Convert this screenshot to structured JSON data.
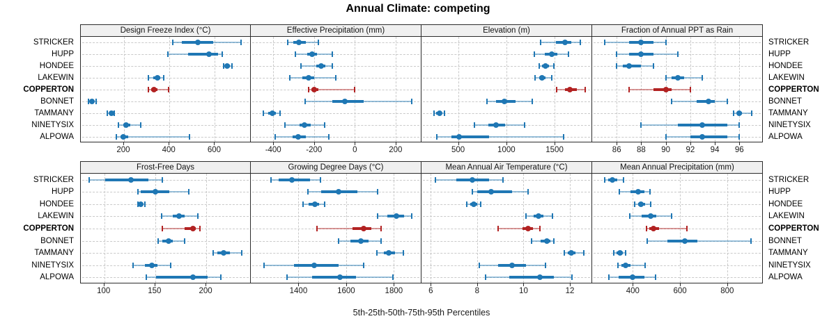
{
  "chart_data": {
    "type": "dotplot-percentiles",
    "title": "Annual Climate: competing",
    "xlabel": "5th-25th-50th-75th-95th Percentiles",
    "legend": "none",
    "grid": "dashed",
    "sites": [
      "STRICKER",
      "HUPP",
      "HONDEE",
      "LAKEWIN",
      "COPPERTON",
      "BONNET",
      "TAMMANY",
      "NINETYSIX",
      "ALPOWA"
    ],
    "highlight_site": "COPPERTON",
    "colors": {
      "normal": "#1F77B4",
      "highlight": "#B22222",
      "panel_header_bg": "#F0F0F0",
      "border": "#2B2B2B",
      "grid": "#C9C9C9"
    },
    "percentile_order": [
      "p5",
      "p25",
      "p50",
      "p75",
      "p95"
    ],
    "panels": [
      {
        "label": "Design Freeze Index (°C)",
        "row": "top",
        "xlim": [
          10,
          755
        ],
        "ticks": [
          200,
          400,
          600
        ],
        "values": {
          "STRICKER": [
            415,
            455,
            526,
            594,
            716
          ],
          "HUPP": [
            393,
            483,
            574,
            615,
            633
          ],
          "HONDEE": [
            640,
            645,
            654,
            666,
            675
          ],
          "LAKEWIN": [
            308,
            330,
            347,
            361,
            374
          ],
          "COPPERTON": [
            308,
            321,
            333,
            347,
            396
          ],
          "BONNET": [
            43,
            52,
            58,
            65,
            76
          ],
          "TAMMANY": [
            126,
            135,
            146,
            152,
            158
          ],
          "NINETYSIX": [
            177,
            196,
            208,
            228,
            275
          ],
          "ALPOWA": [
            167,
            185,
            198,
            218,
            487
          ]
        }
      },
      {
        "label": "Effective Precipitation (mm)",
        "row": "top",
        "xlim": [
          -510,
          320
        ],
        "ticks": [
          -400,
          -200,
          0,
          200
        ],
        "values": {
          "STRICKER": [
            -330,
            -300,
            -273,
            -240,
            -178
          ],
          "HUPP": [
            -290,
            -234,
            -208,
            -185,
            -110
          ],
          "HONDEE": [
            -264,
            -190,
            -166,
            -145,
            -110
          ],
          "LAKEWIN": [
            -318,
            -256,
            -228,
            -200,
            -93
          ],
          "COPPERTON": [
            -228,
            -214,
            -198,
            -178,
            0
          ],
          "BONNET": [
            -243,
            -110,
            -48,
            42,
            278
          ],
          "TAMMANY": [
            -447,
            -424,
            -405,
            -386,
            -368
          ],
          "NINETYSIX": [
            -343,
            -272,
            -247,
            -215,
            -149
          ],
          "ALPOWA": [
            -390,
            -306,
            -279,
            -240,
            -127
          ]
        }
      },
      {
        "label": "Elevation (m)",
        "row": "top",
        "xlim": [
          120,
          1875
        ],
        "ticks": [
          500,
          1000,
          1500
        ],
        "values": {
          "STRICKER": [
            1355,
            1515,
            1605,
            1670,
            1765
          ],
          "HUPP": [
            1290,
            1398,
            1468,
            1528,
            1647
          ],
          "HONDEE": [
            1340,
            1372,
            1408,
            1444,
            1492
          ],
          "LAKEWIN": [
            1300,
            1337,
            1368,
            1408,
            1468
          ],
          "COPPERTON": [
            1523,
            1611,
            1660,
            1731,
            1815
          ],
          "BONNET": [
            800,
            895,
            978,
            1098,
            1265
          ],
          "TAMMANY": [
            250,
            274,
            309,
            333,
            357
          ],
          "NINETYSIX": [
            670,
            810,
            894,
            990,
            1190
          ],
          "ALPOWA": [
            280,
            430,
            512,
            820,
            1595
          ]
        }
      },
      {
        "label": "Fraction of Annual PPT as Rain",
        "row": "top",
        "xlim": [
          84,
          97.8
        ],
        "ticks": [
          86,
          88,
          90,
          92,
          94,
          96
        ],
        "values": {
          "STRICKER": [
            85,
            87,
            88,
            89,
            90
          ],
          "HUPP": [
            86,
            87,
            88,
            89,
            91
          ],
          "HONDEE": [
            86,
            86.5,
            87,
            88,
            89
          ],
          "LAKEWIN": [
            90,
            90.5,
            91,
            91.5,
            93
          ],
          "COPPERTON": [
            87,
            89,
            90,
            90.5,
            92
          ],
          "BONNET": [
            90.5,
            92.5,
            93.5,
            94,
            95
          ],
          "TAMMANY": [
            95.5,
            95.8,
            96,
            96.2,
            97
          ],
          "NINETYSIX": [
            88,
            91,
            93,
            95,
            96
          ],
          "ALPOWA": [
            90,
            92,
            93,
            95,
            96
          ]
        }
      },
      {
        "label": "Frost-Free Days",
        "row": "bottom",
        "xlim": [
          77,
          243
        ],
        "ticks": [
          100,
          150,
          200
        ],
        "values": {
          "STRICKER": [
            85,
            101,
            126,
            143,
            157
          ],
          "HUPP": [
            133,
            136,
            150,
            164,
            183
          ],
          "HONDEE": [
            133,
            134,
            136,
            138,
            140
          ],
          "LAKEWIN": [
            156,
            167,
            173,
            179,
            192
          ],
          "COPPERTON": [
            157,
            179,
            187,
            190,
            194
          ],
          "BONNET": [
            153,
            157,
            163,
            167,
            179
          ],
          "TAMMANY": [
            207,
            211,
            217,
            223,
            235
          ],
          "NINETYSIX": [
            128,
            140,
            147,
            152,
            165
          ],
          "ALPOWA": [
            141,
            151,
            187,
            201,
            214
          ]
        }
      },
      {
        "label": "Growing Degree Days (°C)",
        "row": "bottom",
        "xlim": [
          1200,
          1910
        ],
        "ticks": [
          1400,
          1600,
          1800
        ],
        "values": {
          "STRICKER": [
            1284,
            1316,
            1371,
            1448,
            1492
          ],
          "HUPP": [
            1440,
            1496,
            1569,
            1646,
            1732
          ],
          "HONDEE": [
            1420,
            1443,
            1470,
            1487,
            1510
          ],
          "LAKEWIN": [
            1732,
            1774,
            1810,
            1843,
            1875
          ],
          "COPPERTON": [
            1478,
            1628,
            1672,
            1705,
            1747
          ],
          "BONNET": [
            1567,
            1617,
            1663,
            1695,
            1747
          ],
          "TAMMANY": [
            1728,
            1757,
            1779,
            1805,
            1839
          ],
          "NINETYSIX": [
            1255,
            1381,
            1466,
            1569,
            1672
          ],
          "ALPOWA": [
            1352,
            1458,
            1573,
            1641,
            1797
          ]
        }
      },
      {
        "label": "Mean Annual Air Temperature (°C)",
        "row": "bottom",
        "xlim": [
          5.6,
          12.9
        ],
        "ticks": [
          6,
          8,
          10,
          12
        ],
        "values": {
          "STRICKER": [
            6.2,
            7.1,
            7.8,
            8.5,
            9.1
          ],
          "HUPP": [
            7.8,
            8.0,
            8.6,
            9.5,
            10.2
          ],
          "HONDEE": [
            7.55,
            7.7,
            7.85,
            8.0,
            8.15
          ],
          "LAKEWIN": [
            10.1,
            10.45,
            10.65,
            10.85,
            11.25
          ],
          "COPPERTON": [
            8.9,
            9.95,
            10.2,
            10.4,
            10.7
          ],
          "BONNET": [
            10.35,
            10.75,
            11.0,
            11.15,
            11.3
          ],
          "TAMMANY": [
            11.75,
            11.9,
            12.05,
            12.25,
            12.6
          ],
          "NINETYSIX": [
            8.1,
            8.9,
            9.5,
            10.1,
            10.95
          ],
          "ALPOWA": [
            8.35,
            9.4,
            10.7,
            11.3,
            12.1
          ]
        }
      },
      {
        "label": "Mean Annual Precipitation (mm)",
        "row": "bottom",
        "xlim": [
          228,
          945
        ],
        "ticks": [
          400,
          600,
          800
        ],
        "values": {
          "STRICKER": [
            282,
            295,
            315,
            335,
            362
          ],
          "HUPP": [
            343,
            390,
            424,
            450,
            472
          ],
          "HONDEE": [
            408,
            422,
            436,
            453,
            475
          ],
          "LAKEWIN": [
            386,
            438,
            475,
            500,
            563
          ],
          "COPPERTON": [
            457,
            469,
            488,
            510,
            630
          ],
          "BONNET": [
            460,
            548,
            620,
            675,
            900
          ],
          "TAMMANY": [
            319,
            331,
            345,
            359,
            371
          ],
          "NINETYSIX": [
            336,
            352,
            369,
            389,
            453
          ],
          "ALPOWA": [
            300,
            340,
            398,
            448,
            496
          ]
        }
      }
    ]
  }
}
